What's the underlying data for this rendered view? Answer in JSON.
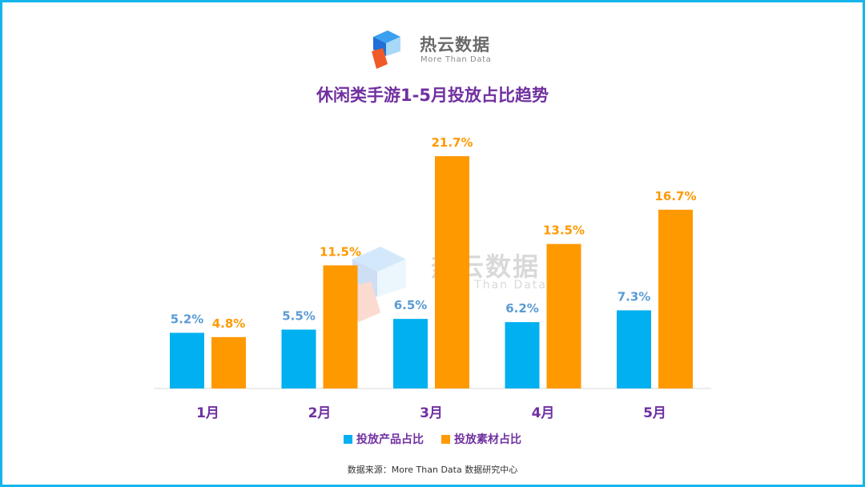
{
  "logo": {
    "name": "热云数据",
    "tagline": "More Than Data",
    "colors": [
      "#1f6fd6",
      "#3aa0ef",
      "#a8d8f8",
      "#f05a28"
    ]
  },
  "watermark": {
    "name": "热云数据",
    "tagline": "More Than Data"
  },
  "source": "数据来源：More Than Data 数据研究中心",
  "chart_data": {
    "type": "bar",
    "title": "休闲类手游1-5月投放占比趋势",
    "categories": [
      "1月",
      "2月",
      "3月",
      "4月",
      "5月"
    ],
    "series": [
      {
        "name": "投放产品占比",
        "values": [
          5.2,
          5.5,
          6.5,
          6.2,
          7.3
        ],
        "labels": [
          "5.2%",
          "5.5%",
          "6.5%",
          "6.2%",
          "7.3%"
        ],
        "color": "#00b0f0",
        "label_color": "#5b9bd5"
      },
      {
        "name": "投放素材占比",
        "values": [
          4.8,
          11.5,
          21.7,
          13.5,
          16.7
        ],
        "labels": [
          "4.8%",
          "11.5%",
          "21.7%",
          "13.5%",
          "16.7%"
        ],
        "color": "#ff9900",
        "label_color": "#ff9900"
      }
    ],
    "xlabel": "",
    "ylabel": "",
    "unit": "%",
    "ylim": [
      0,
      21.7
    ],
    "grid": false,
    "legend": "bottom",
    "text_color": "#7030a0"
  }
}
